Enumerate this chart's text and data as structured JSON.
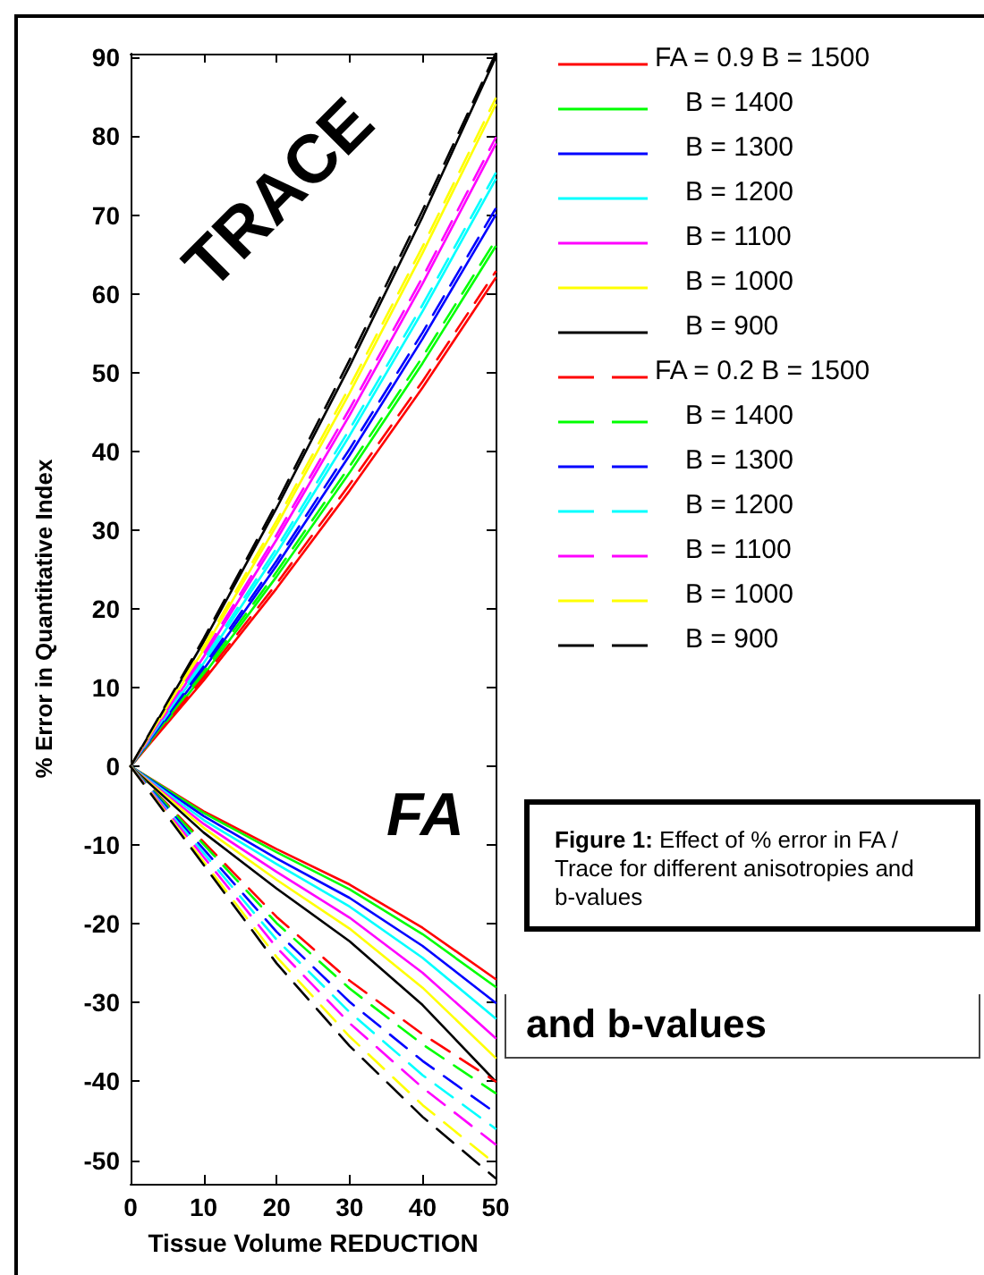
{
  "chart_data": {
    "type": "line",
    "xlabel": "Tissue Volume REDUCTION",
    "ylabel": "% Error in Quantitative Index",
    "x": [
      0,
      10,
      20,
      30,
      40,
      50
    ],
    "xlim": [
      0,
      50
    ],
    "xticks": [
      0,
      10,
      20,
      30,
      40,
      50
    ],
    "ylim": [
      -53,
      90.5
    ],
    "yticks": [
      -50,
      -40,
      -30,
      -20,
      -10,
      0,
      10,
      20,
      30,
      40,
      50,
      60,
      70,
      80,
      90
    ],
    "grid": false,
    "legend": "right",
    "annotations": [
      "TRACE",
      "FA",
      "Figure 1: Effect of % error in FA / Trace for different anisotropies and b-values",
      "and b-values"
    ],
    "series": [
      {
        "name": "FA = 0.9 B = 1500",
        "color": "#ff0000",
        "line_style": "solid",
        "values": [
          0,
          10.9,
          22.6,
          35,
          48.1,
          62
        ]
      },
      {
        "name": "B = 1400",
        "color": "#00ff00",
        "line_style": "solid",
        "values": [
          0,
          11.6,
          24.1,
          37.3,
          51.2,
          66
        ]
      },
      {
        "name": "B = 1300",
        "color": "#0000ff",
        "line_style": "solid",
        "values": [
          0,
          12.3,
          25.5,
          39.5,
          54.3,
          70
        ]
      },
      {
        "name": "B = 1200",
        "color": "#00ffff",
        "line_style": "solid",
        "values": [
          0,
          13.1,
          27.1,
          42,
          57.8,
          74.5
        ]
      },
      {
        "name": "B = 1100",
        "color": "#ff00ff",
        "line_style": "solid",
        "values": [
          0,
          13.9,
          28.8,
          44.6,
          61.3,
          79
        ]
      },
      {
        "name": "B = 1000",
        "color": "#ffff00",
        "line_style": "solid",
        "values": [
          0,
          14.8,
          30.6,
          47.4,
          65.2,
          84
        ]
      },
      {
        "name": "B = 900",
        "color": "#000000",
        "line_style": "solid",
        "values": [
          0,
          15.8,
          32.8,
          50.8,
          69.8,
          90
        ]
      },
      {
        "name": "FA = 0.2 B = 1500",
        "color": "#ff0000",
        "line_style": "dashed",
        "values": [
          0,
          11.3,
          23.2,
          35.8,
          48.9,
          62.8
        ]
      },
      {
        "name": "B = 1400",
        "color": "#00ff00",
        "line_style": "dashed",
        "values": [
          0,
          12,
          24.7,
          38.1,
          52,
          66.8
        ]
      },
      {
        "name": "B = 1300",
        "color": "#0000ff",
        "line_style": "dashed",
        "values": [
          0,
          12.7,
          26.1,
          40.3,
          55.1,
          70.8
        ]
      },
      {
        "name": "B = 1200",
        "color": "#00ffff",
        "line_style": "dashed",
        "values": [
          0,
          13.5,
          27.7,
          42.8,
          58.6,
          75.3
        ]
      },
      {
        "name": "B = 1100",
        "color": "#ff00ff",
        "line_style": "dashed",
        "values": [
          0,
          14.3,
          29.4,
          45.4,
          62.1,
          79.8
        ]
      },
      {
        "name": "B = 1000",
        "color": "#ffff00",
        "line_style": "dashed",
        "values": [
          0,
          15.2,
          31.2,
          48.2,
          66,
          84.8
        ]
      },
      {
        "name": "B = 900",
        "color": "#000000",
        "line_style": "dashed",
        "values": [
          0,
          16.2,
          33.4,
          51.6,
          70.6,
          90.5
        ]
      },
      {
        "color": "#ff0000",
        "line_style": "solid",
        "values": [
          0,
          -5.7,
          -10.5,
          -15,
          -20.5,
          -27
        ]
      },
      {
        "color": "#00ff00",
        "line_style": "solid",
        "values": [
          0,
          -5.9,
          -10.9,
          -15.6,
          -21.3,
          -28
        ]
      },
      {
        "color": "#0000ff",
        "line_style": "solid",
        "values": [
          0,
          -6.3,
          -11.7,
          -16.7,
          -22.8,
          -30
        ]
      },
      {
        "color": "#00ffff",
        "line_style": "solid",
        "values": [
          0,
          -6.8,
          -12.4,
          -17.8,
          -24.3,
          -32
        ]
      },
      {
        "color": "#ff00ff",
        "line_style": "solid",
        "values": [
          0,
          -7.3,
          -13.4,
          -19.2,
          -26.2,
          -34.5
        ]
      },
      {
        "color": "#ffff00",
        "line_style": "solid",
        "values": [
          0,
          -7.8,
          -14.4,
          -20.6,
          -28.1,
          -37
        ]
      },
      {
        "color": "#000000",
        "line_style": "solid",
        "values": [
          0,
          -8.4,
          -15.5,
          -22.2,
          -30.3,
          -40
        ]
      },
      {
        "color": "#ff0000",
        "line_style": "dashed",
        "values": [
          0,
          -9.6,
          -19.1,
          -27.2,
          -34,
          -40
        ]
      },
      {
        "color": "#00ff00",
        "line_style": "dashed",
        "values": [
          0,
          -9.9,
          -19.9,
          -28.2,
          -35.3,
          -41.5
        ]
      },
      {
        "color": "#0000ff",
        "line_style": "dashed",
        "values": [
          0,
          -10.5,
          -21,
          -29.9,
          -37.4,
          -44
        ]
      },
      {
        "color": "#00ffff",
        "line_style": "dashed",
        "values": [
          0,
          -11,
          -22,
          -31.2,
          -39.2,
          -46
        ]
      },
      {
        "color": "#ff00ff",
        "line_style": "dashed",
        "values": [
          0,
          -11.5,
          -23,
          -32.6,
          -40.8,
          -48
        ]
      },
      {
        "color": "#ffff00",
        "line_style": "dashed",
        "values": [
          0,
          -12.1,
          -24.2,
          -34.3,
          -43,
          -50.5
        ]
      },
      {
        "color": "#000000",
        "line_style": "dashed",
        "values": [
          0,
          -12.5,
          -25,
          -35.5,
          -44.5,
          -52.3
        ]
      }
    ]
  }
}
